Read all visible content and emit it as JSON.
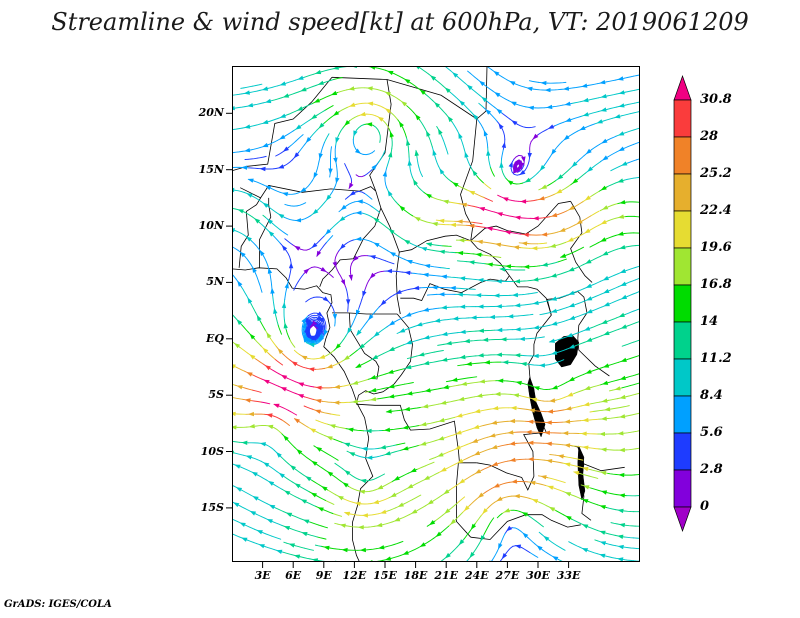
{
  "title": "Streamline & wind speed[kt] at 600hPa, VT: 2019061209",
  "footer": "GrADS: IGES/COLA",
  "axes": {
    "y_ticks": [
      {
        "label": "20N",
        "lat": 20
      },
      {
        "label": "15N",
        "lat": 15
      },
      {
        "label": "10N",
        "lat": 10
      },
      {
        "label": "5N",
        "lat": 5
      },
      {
        "label": "EQ",
        "lat": 0
      },
      {
        "label": "5S",
        "lat": -5
      },
      {
        "label": "10S",
        "lat": -10
      },
      {
        "label": "15S",
        "lat": -15
      }
    ],
    "x_ticks": [
      {
        "label": "3E",
        "lon": 3
      },
      {
        "label": "6E",
        "lon": 6
      },
      {
        "label": "9E",
        "lon": 9
      },
      {
        "label": "12E",
        "lon": 12
      },
      {
        "label": "15E",
        "lon": 15
      },
      {
        "label": "18E",
        "lon": 18
      },
      {
        "label": "21E",
        "lon": 21
      },
      {
        "label": "24E",
        "lon": 24
      },
      {
        "label": "27E",
        "lon": 27
      },
      {
        "label": "30E",
        "lon": 30
      },
      {
        "label": "33E",
        "lon": 33
      }
    ]
  },
  "colorbar": {
    "labels": [
      "30.8",
      "28",
      "25.2",
      "22.4",
      "19.6",
      "16.8",
      "14",
      "11.2",
      "8.4",
      "5.6",
      "2.8",
      "0"
    ],
    "colors_top_to_bottom": [
      "#fa3c3c",
      "#f08228",
      "#e6af2d",
      "#e6dc32",
      "#a0e632",
      "#00dc00",
      "#00d28c",
      "#00c8c8",
      "#00a0ff",
      "#1e3cff",
      "#8200dc"
    ],
    "arrow_top_color": "#f00082",
    "arrow_bottom_color": "#a000c8"
  },
  "chart_data": {
    "type": "streamline",
    "title": "Streamline & wind speed[kt] at 600hPa, VT: 2019061209",
    "field": "wind speed",
    "units": "kt",
    "pressure_level": "600hPa",
    "valid_time": "2019061209",
    "x_tick_labels": [
      "3E",
      "6E",
      "9E",
      "12E",
      "15E",
      "18E",
      "21E",
      "24E",
      "27E",
      "30E",
      "33E"
    ],
    "y_tick_labels": [
      "20N",
      "15N",
      "10N",
      "5N",
      "EQ",
      "5S",
      "10S",
      "15S"
    ],
    "lon_range_est": [
      0,
      40
    ],
    "lat_range_est": [
      -20,
      24
    ],
    "colorbar_levels": [
      0,
      2.8,
      5.6,
      8.4,
      11.2,
      14,
      16.8,
      19.6,
      22.4,
      25.2,
      28,
      30.8
    ],
    "colorbar_position": "right",
    "legend": "wind speed (kt): purple = 0 to red = 30.8+",
    "attribution": "GrADS: IGES/COLA"
  }
}
